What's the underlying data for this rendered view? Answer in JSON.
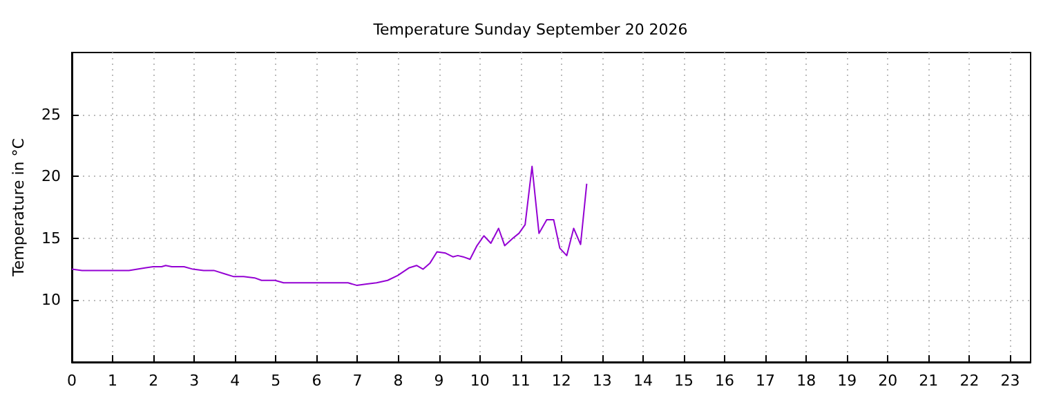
{
  "chart_data": {
    "type": "line",
    "title": "Temperature Sunday September 20 2026",
    "ylabel": "Temperature in °C",
    "x": [
      0,
      0.25,
      0.61,
      0.76,
      1.4,
      1.79,
      1.99,
      2.2,
      2.3,
      2.45,
      2.75,
      2.97,
      3.23,
      3.48,
      3.77,
      3.97,
      4.21,
      4.48,
      4.65,
      4.98,
      5.19,
      5.46,
      6.77,
      6.98,
      7.23,
      7.47,
      7.74,
      7.99,
      8.26,
      8.45,
      8.61,
      8.78,
      8.95,
      9.16,
      9.34,
      9.46,
      9.59,
      9.76,
      9.93,
      10.1,
      10.27,
      10.46,
      10.61,
      10.81,
      10.96,
      11.11,
      11.28,
      11.45,
      11.64,
      11.81,
      11.96,
      12.13,
      12.3,
      12.47,
      12.62
    ],
    "series": [
      {
        "color": "#9400d3",
        "values": [
          12.5,
          12.4,
          12.4,
          12.4,
          12.4,
          12.6,
          12.7,
          12.7,
          12.8,
          12.7,
          12.7,
          12.5,
          12.4,
          12.4,
          12.1,
          11.9,
          11.9,
          11.8,
          11.6,
          11.6,
          11.4,
          11.4,
          11.4,
          11.2,
          11.3,
          11.4,
          11.6,
          12.0,
          12.6,
          12.8,
          12.5,
          13.0,
          13.9,
          13.8,
          13.5,
          13.6,
          13.5,
          13.3,
          14.4,
          15.2,
          14.6,
          15.8,
          14.4,
          15.0,
          15.4,
          16.1,
          20.8,
          15.4,
          16.5,
          16.5,
          14.2,
          13.6,
          15.8,
          14.5,
          19.4
        ]
      }
    ],
    "xlim": [
      0,
      23.5
    ],
    "xticks": [
      0,
      1,
      2,
      3,
      4,
      5,
      6,
      7,
      8,
      9,
      10,
      11,
      12,
      13,
      14,
      15,
      16,
      17,
      18,
      19,
      20,
      21,
      22,
      23
    ],
    "ylim": [
      5,
      30
    ],
    "yticks": [
      10,
      15,
      20,
      25
    ],
    "grid": true,
    "marker": "none",
    "line_style": "solid"
  }
}
